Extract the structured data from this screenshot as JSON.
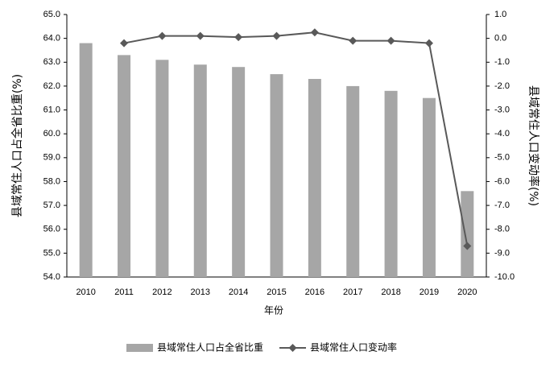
{
  "chart_data": {
    "type": "bar-line",
    "x_label": "年份",
    "y_label": "县域常住人口占全省比重(%)",
    "y2_label": "县域常住人口变动率(%)",
    "categories": [
      "2010",
      "2011",
      "2012",
      "2013",
      "2014",
      "2015",
      "2016",
      "2017",
      "2018",
      "2019",
      "2020"
    ],
    "series": [
      {
        "name": "县域常住人口占全省比重",
        "type": "bar",
        "color": "#a6a6a6",
        "values": [
          63.8,
          63.3,
          63.1,
          62.9,
          62.8,
          62.5,
          62.3,
          62.0,
          61.8,
          61.5,
          57.6
        ]
      },
      {
        "name": "县域常住人口变动率",
        "type": "line",
        "axis": "y2",
        "color": "#595959",
        "values": [
          null,
          -0.2,
          0.1,
          0.1,
          0.05,
          0.1,
          0.25,
          -0.1,
          -0.1,
          -0.2,
          -8.7
        ]
      }
    ],
    "ylim": [
      54,
      65
    ],
    "yticks": [
      {
        "value": 54,
        "label": "54.0"
      },
      {
        "value": 55,
        "label": "55.0"
      },
      {
        "value": 56,
        "label": "56.0"
      },
      {
        "value": 57,
        "label": "57.0"
      },
      {
        "value": 58,
        "label": "58.0"
      },
      {
        "value": 59,
        "label": "59.0"
      },
      {
        "value": 60,
        "label": "60.0"
      },
      {
        "value": 61,
        "label": "61.0"
      },
      {
        "value": 62,
        "label": "62.0"
      },
      {
        "value": 63,
        "label": "63.0"
      },
      {
        "value": 64,
        "label": "64.0"
      },
      {
        "value": 65,
        "label": "65.0"
      }
    ],
    "y2lim": [
      -10,
      1
    ],
    "y2ticks": [
      {
        "value": -10,
        "label": "-10.0"
      },
      {
        "value": -9,
        "label": "-9.0"
      },
      {
        "value": -8,
        "label": "-8.0"
      },
      {
        "value": -7,
        "label": "-7.0"
      },
      {
        "value": -6,
        "label": "-6.0"
      },
      {
        "value": -5,
        "label": "-5.0"
      },
      {
        "value": -4,
        "label": "-4.0"
      },
      {
        "value": -3,
        "label": "-3.0"
      },
      {
        "value": -2,
        "label": "-2.0"
      },
      {
        "value": -1,
        "label": "-1.0"
      },
      {
        "value": 0,
        "label": "0.0"
      },
      {
        "value": 1,
        "label": "1.0"
      }
    ],
    "legend": "bottom"
  }
}
